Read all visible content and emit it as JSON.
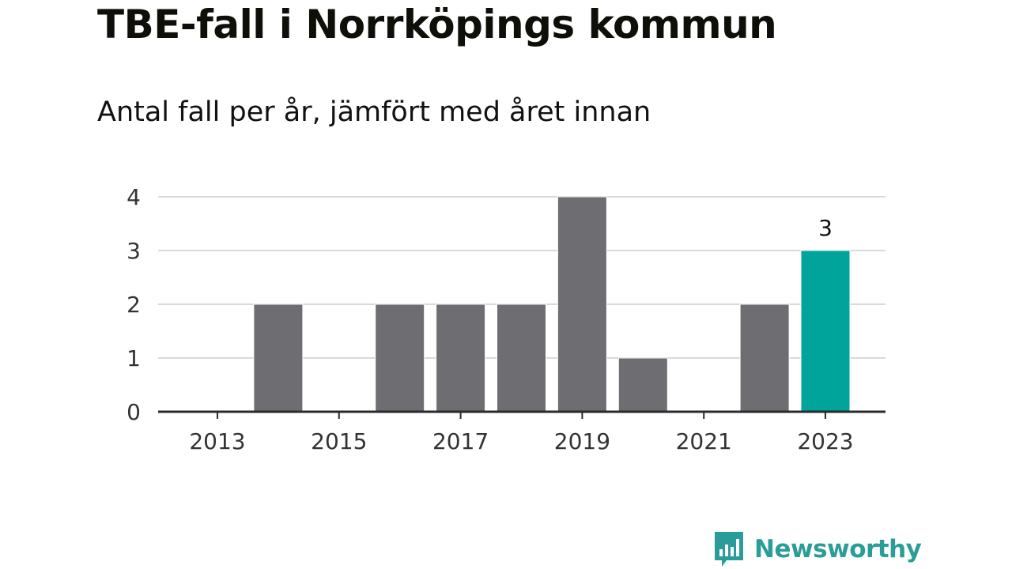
{
  "title": "TBE-fall i Norrköpings kommun",
  "subtitle": "Antal fall per år, jämfört med året innan",
  "brand": {
    "name": "Newsworthy",
    "icon": "bar-chart-logo-icon",
    "color": "#2a9d99"
  },
  "colors": {
    "bar": "#6e6d72",
    "highlight": "#00a49a",
    "grid": "#d9d9d9",
    "axis": "#2a2a2a",
    "text": "#111111"
  },
  "chart_data": {
    "type": "bar",
    "categories": [
      "2013",
      "2014",
      "2015",
      "2016",
      "2017",
      "2018",
      "2019",
      "2020",
      "2021",
      "2022",
      "2023"
    ],
    "values": [
      0,
      2,
      0,
      2,
      2,
      2,
      4,
      1,
      0,
      2,
      3
    ],
    "highlight_index": 10,
    "data_labels": [
      {
        "index": 10,
        "text": "3"
      }
    ],
    "x_tick_labels": [
      "2013",
      "2015",
      "2017",
      "2019",
      "2021",
      "2023"
    ],
    "y_ticks": [
      0,
      1,
      2,
      3,
      4
    ],
    "ylim": [
      0,
      4
    ],
    "xlabel": "",
    "ylabel": "",
    "grid": true,
    "legend": "none"
  }
}
